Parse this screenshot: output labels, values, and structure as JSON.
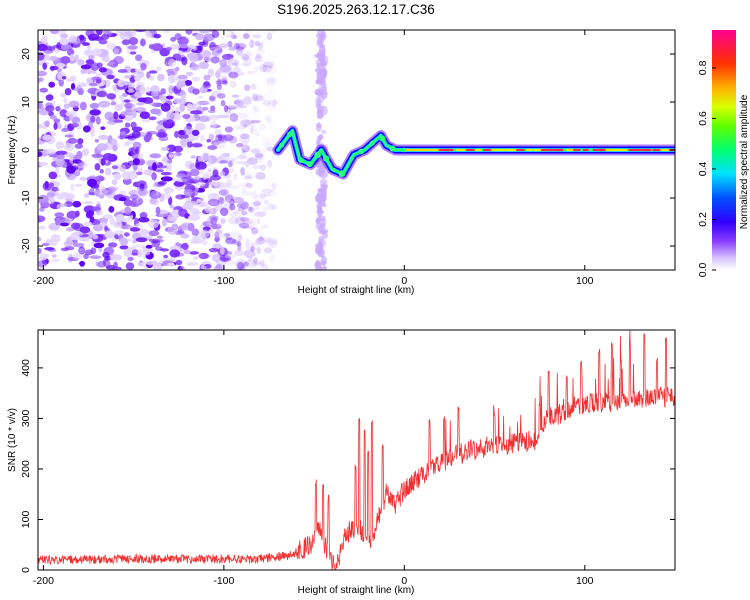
{
  "figure_title": "S196.2025.263.12.17.C36",
  "chart_data": [
    {
      "type": "heatmap",
      "name": "spectrogram",
      "title": "S196.2025.263.12.17.C36",
      "xlabel": "Height of straight line (km)",
      "ylabel": "Frequency (Hz)",
      "xlim": [
        -203,
        150
      ],
      "ylim": [
        -25,
        25
      ],
      "xticks": [
        -200,
        -100,
        0,
        100
      ],
      "yticks": [
        -20,
        -10,
        0,
        10,
        20
      ],
      "xtick_labels": [
        "-200",
        "-100",
        "0",
        "100"
      ],
      "ytick_labels": [
        "-20",
        "-10",
        "0",
        "10",
        "20"
      ],
      "noise_region_x": [
        -203,
        -72
      ],
      "sparse_band_x": [
        -48,
        -44
      ],
      "signal_ridge": {
        "description_points_x": [
          -70,
          -62,
          -58,
          -52,
          -46,
          -40,
          -34,
          -28,
          -22,
          -16,
          -13,
          -10,
          -5,
          0,
          20,
          60,
          100,
          150
        ],
        "description_points_y": [
          0,
          4,
          -2,
          -3,
          0,
          -4,
          -5,
          -1,
          0,
          2,
          3,
          1,
          0,
          0,
          0,
          0,
          0,
          0
        ]
      },
      "colorbar": {
        "label": "Normalized spectral amplitude",
        "range": [
          0,
          0.95
        ],
        "ticks": [
          0,
          0.2,
          0.4,
          0.6,
          0.8
        ],
        "tick_labels": [
          "0.0",
          "0.2",
          "0.4",
          "0.6",
          "0.8"
        ],
        "colors": [
          "#ffffff",
          "#b58cff",
          "#5a00ff",
          "#0000ff",
          "#00e5ff",
          "#00ff40",
          "#c8ff00",
          "#ffd000",
          "#ff4000",
          "#ff0090"
        ]
      }
    },
    {
      "type": "line",
      "name": "snr",
      "title": "",
      "xlabel": "Height of straight line (km)",
      "ylabel": "SNR (10 * v/v)",
      "xlim": [
        -203,
        150
      ],
      "ylim": [
        0,
        475
      ],
      "xticks": [
        -200,
        -100,
        0,
        100
      ],
      "yticks": [
        0,
        100,
        200,
        300,
        400
      ],
      "xtick_labels": [
        "-200",
        "-100",
        "0",
        "100"
      ],
      "ytick_labels": [
        "0",
        "100",
        "200",
        "300",
        "400"
      ],
      "color": "#f03030",
      "series_envelope": {
        "x": [
          -203,
          -150,
          -80,
          -62,
          -55,
          -50,
          -47,
          -45,
          -40,
          -36,
          -34,
          -30,
          -25,
          -20,
          -18,
          -15,
          -10,
          -5,
          0,
          10,
          20,
          30,
          40,
          50,
          60,
          70,
          75,
          78,
          85,
          90,
          100,
          110,
          120,
          130,
          140,
          150
        ],
        "y": [
          20,
          22,
          22,
          30,
          45,
          55,
          90,
          60,
          10,
          25,
          60,
          80,
          85,
          60,
          40,
          100,
          150,
          130,
          160,
          185,
          210,
          230,
          240,
          245,
          250,
          255,
          260,
          300,
          305,
          320,
          330,
          330,
          335,
          340,
          345,
          340
        ]
      },
      "spike_peaks": {
        "x": [
          -49,
          -45,
          -42,
          -27,
          -25,
          -22,
          -20,
          -18,
          -12,
          14,
          22,
          30,
          50,
          75,
          80,
          90,
          98,
          108,
          115,
          120,
          125,
          133,
          140,
          145
        ],
        "y": [
          180,
          175,
          150,
          210,
          300,
          280,
          240,
          300,
          250,
          300,
          305,
          325,
          315,
          330,
          400,
          385,
          415,
          440,
          450,
          420,
          445,
          470,
          420,
          460
        ]
      }
    }
  ]
}
